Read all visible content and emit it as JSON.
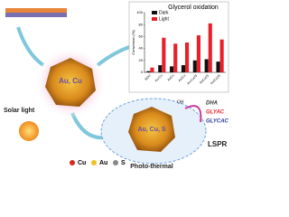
{
  "chart_data": {
    "type": "bar",
    "title": "Glycerol oxidation",
    "y_label": "Conversion (%)",
    "categories": [
      "SiO2",
      "Au-Cu",
      "AuCu",
      "Au/Cu",
      "Au-Cu2S",
      "AuCu2S",
      "Au/Cu2S"
    ],
    "series": [
      {
        "name": "Dark",
        "color": "#111111",
        "values": [
          2,
          12,
          10,
          12,
          20,
          22,
          18
        ]
      },
      {
        "name": "Light",
        "color": "#e8202a",
        "values": [
          8,
          58,
          48,
          50,
          62,
          82,
          55
        ]
      }
    ],
    "ylim": [
      0,
      100
    ],
    "yticks": [
      0,
      20,
      40,
      60,
      80,
      100
    ]
  },
  "diagram": {
    "top_particle": "Au, Cu",
    "bottom_particle": "Au, Cu, S",
    "light_source": "Solar light",
    "legend": [
      "Cu",
      "Au",
      "S"
    ],
    "products": [
      "DHA",
      "GLYAC",
      "GLYCAC"
    ],
    "reactant": "OH",
    "effects": [
      "Photo-thermal",
      "LSPR"
    ]
  }
}
